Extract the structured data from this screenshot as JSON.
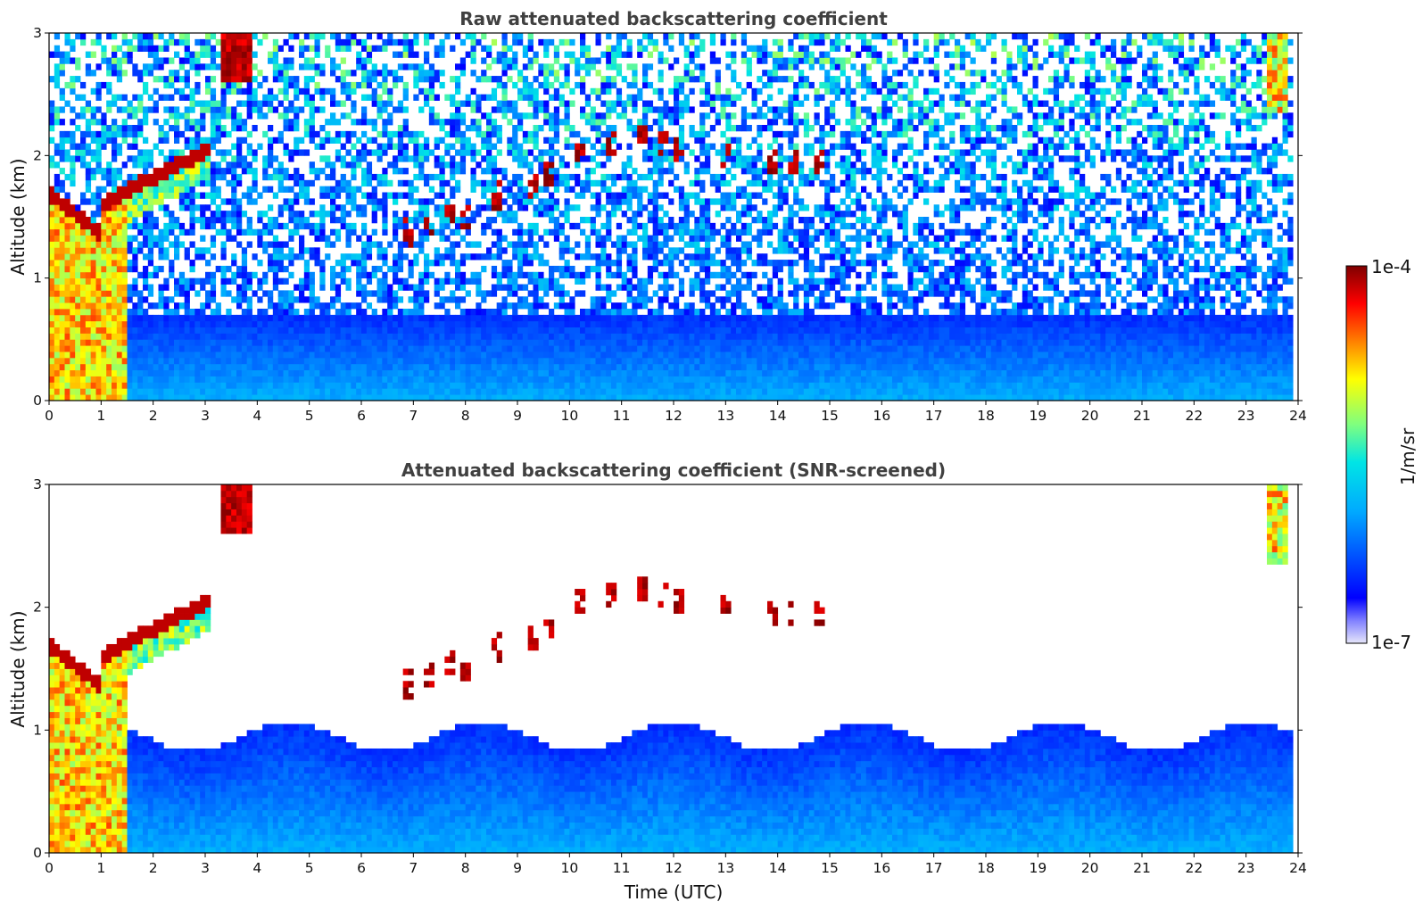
{
  "chart_data": [
    {
      "type": "heatmap",
      "title": "Raw attenuated backscattering coefficient",
      "xlabel": "",
      "ylabel": "Altitude (km)",
      "xlim": [
        0,
        24
      ],
      "ylim": [
        0,
        3
      ],
      "xticks": [
        "0",
        "1",
        "2",
        "3",
        "4",
        "5",
        "6",
        "7",
        "8",
        "9",
        "10",
        "11",
        "12",
        "13",
        "14",
        "15",
        "16",
        "17",
        "18",
        "19",
        "20",
        "21",
        "22",
        "23",
        "24"
      ],
      "yticks": [
        "0",
        "1",
        "2",
        "3"
      ],
      "screening": "none",
      "features": [
        {
          "name": "aerosol/cloud layer 0-1.5 UTC",
          "x": [
            0,
            1.5
          ],
          "y": [
            0,
            1.8
          ],
          "level": "high"
        },
        {
          "name": "layer top rising 1-3 UTC",
          "x": [
            1.0,
            3.1
          ],
          "y": [
            1.6,
            2.1
          ],
          "level": "very high"
        },
        {
          "name": "elevated cloud 3.3-3.9 UTC",
          "x": [
            3.3,
            3.9
          ],
          "y": [
            2.6,
            3.0
          ],
          "level": "very high"
        },
        {
          "name": "boundary layer",
          "x": [
            1.5,
            23.8
          ],
          "y": [
            0,
            0.7
          ],
          "level": "medium"
        },
        {
          "name": "scattered cloud 6.9-15 UTC",
          "x": [
            6.9,
            15.0
          ],
          "y": [
            1.3,
            2.2
          ],
          "level": "very high"
        },
        {
          "name": "cloud near 23.5 UTC",
          "x": [
            23.4,
            23.8
          ],
          "y": [
            2.3,
            3.0
          ],
          "level": "high"
        }
      ]
    },
    {
      "type": "heatmap",
      "title": "Attenuated backscattering coefficient (SNR-screened)",
      "xlabel": "Time (UTC)",
      "ylabel": "Altitude (km)",
      "xlim": [
        0,
        24
      ],
      "ylim": [
        0,
        3
      ],
      "xticks": [
        "0",
        "1",
        "2",
        "3",
        "4",
        "5",
        "6",
        "7",
        "8",
        "9",
        "10",
        "11",
        "12",
        "13",
        "14",
        "15",
        "16",
        "17",
        "18",
        "19",
        "20",
        "21",
        "22",
        "23",
        "24"
      ],
      "yticks": [
        "0",
        "1",
        "2",
        "3"
      ],
      "screening": "SNR",
      "features": [
        {
          "name": "aerosol/cloud layer 0-1.5 UTC",
          "x": [
            0,
            1.5
          ],
          "y": [
            0,
            1.8
          ],
          "level": "high"
        },
        {
          "name": "layer top rising 1-3 UTC",
          "x": [
            1.0,
            3.1
          ],
          "y": [
            1.6,
            2.1
          ],
          "level": "very high"
        },
        {
          "name": "elevated cloud 3.3-3.9 UTC",
          "x": [
            3.3,
            3.9
          ],
          "y": [
            2.6,
            3.0
          ],
          "level": "very high"
        },
        {
          "name": "boundary layer",
          "x": [
            1.5,
            23.8
          ],
          "y": [
            0,
            1.1
          ],
          "level": "medium"
        },
        {
          "name": "scattered cloud 6.9-15 UTC",
          "x": [
            6.9,
            15.0
          ],
          "y": [
            1.3,
            2.2
          ],
          "level": "very high"
        },
        {
          "name": "cloud near 23.5 UTC",
          "x": [
            23.4,
            23.8
          ],
          "y": [
            2.3,
            3.0
          ],
          "level": "high"
        }
      ]
    }
  ],
  "colorbar": {
    "label": "1/m/sr",
    "max_label": "1e-4",
    "min_label": "1e-7",
    "scale": "log",
    "colors": [
      "#e6e6fa",
      "#0000ff",
      "#00aaff",
      "#00e5e5",
      "#7fff7f",
      "#ffff00",
      "#ff8000",
      "#ff0000",
      "#7f0000"
    ]
  }
}
